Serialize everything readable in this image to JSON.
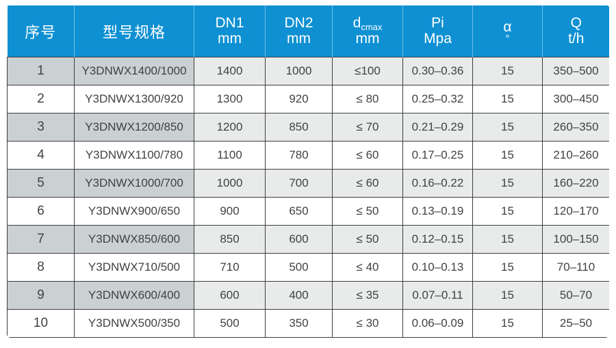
{
  "colors": {
    "header_bg": "#0e90d2",
    "header_text": "#ffffff",
    "row_shaded_lead": "#cbd0d2",
    "row_shaded": "#e9eaea",
    "row_even": "#ffffff",
    "border": "#3b3d3f",
    "body_text": "#3f4244"
  },
  "table": {
    "columns": {
      "col1": {
        "label": "序号"
      },
      "col2": {
        "label": "型号规格"
      },
      "col3": {
        "line1": "DN1",
        "line2": "mm"
      },
      "col4": {
        "line1": "DN2",
        "line2": "mm"
      },
      "col5": {
        "main": "d",
        "sub": "cmax",
        "line2": "mm"
      },
      "col6": {
        "line1": "Pi",
        "line2": "Mpa"
      },
      "col7": {
        "line1": "α",
        "line2": "°"
      },
      "col8": {
        "line1": "Q",
        "line2": "t/h"
      }
    },
    "rows": [
      {
        "index": "1",
        "model": "Y3DNWX1400/1000",
        "dn1": "1400",
        "dn2": "1000",
        "dcmax": "≤100",
        "pi": "0.30–0.36",
        "alpha": "15",
        "q": "350–500"
      },
      {
        "index": "2",
        "model": "Y3DNWX1300/920",
        "dn1": "1300",
        "dn2": "920",
        "dcmax": "≤ 80",
        "pi": "0.25–0.32",
        "alpha": "15",
        "q": "300–450"
      },
      {
        "index": "3",
        "model": "Y3DNWX1200/850",
        "dn1": "1200",
        "dn2": "850",
        "dcmax": "≤ 70",
        "pi": "0.21–0.29",
        "alpha": "15",
        "q": "260–350"
      },
      {
        "index": "4",
        "model": "Y3DNWX1100/780",
        "dn1": "1100",
        "dn2": "780",
        "dcmax": "≤ 60",
        "pi": "0.17–0.25",
        "alpha": "15",
        "q": "210–260"
      },
      {
        "index": "5",
        "model": "Y3DNWX1000/700",
        "dn1": "1000",
        "dn2": "700",
        "dcmax": "≤ 60",
        "pi": "0.16–0.22",
        "alpha": "15",
        "q": "160–220"
      },
      {
        "index": "6",
        "model": "Y3DNWX900/650",
        "dn1": "900",
        "dn2": "650",
        "dcmax": "≤ 50",
        "pi": "0.13–0.19",
        "alpha": "15",
        "q": "120–170"
      },
      {
        "index": "7",
        "model": "Y3DNWX850/600",
        "dn1": "850",
        "dn2": "600",
        "dcmax": "≤ 50",
        "pi": "0.12–0.15",
        "alpha": "15",
        "q": "100–150"
      },
      {
        "index": "8",
        "model": "Y3DNWX710/500",
        "dn1": "710",
        "dn2": "500",
        "dcmax": "≤ 40",
        "pi": "0.10–0.13",
        "alpha": "15",
        "q": "70–110"
      },
      {
        "index": "9",
        "model": "Y3DNWX600/400",
        "dn1": "600",
        "dn2": "400",
        "dcmax": "≤ 35",
        "pi": "0.07–0.11",
        "alpha": "15",
        "q": "50–70"
      },
      {
        "index": "10",
        "model": "Y3DNWX500/350",
        "dn1": "500",
        "dn2": "350",
        "dcmax": "≤ 30",
        "pi": "0.06–0.09",
        "alpha": "15",
        "q": "25–50"
      }
    ]
  },
  "chart_data": {
    "type": "table",
    "title": "",
    "columns": [
      "序号",
      "型号规格",
      "DN1 mm",
      "DN2 mm",
      "dcmax mm",
      "Pi Mpa",
      "α °",
      "Q t/h"
    ],
    "rows": [
      [
        "1",
        "Y3DNWX1400/1000",
        "1400",
        "1000",
        "≤100",
        "0.30–0.36",
        "15",
        "350–500"
      ],
      [
        "2",
        "Y3DNWX1300/920",
        "1300",
        "920",
        "≤ 80",
        "0.25–0.32",
        "15",
        "300–450"
      ],
      [
        "3",
        "Y3DNWX1200/850",
        "1200",
        "850",
        "≤ 70",
        "0.21–0.29",
        "15",
        "260–350"
      ],
      [
        "4",
        "Y3DNWX1100/780",
        "1100",
        "780",
        "≤ 60",
        "0.17–0.25",
        "15",
        "210–260"
      ],
      [
        "5",
        "Y3DNWX1000/700",
        "1000",
        "700",
        "≤ 60",
        "0.16–0.22",
        "15",
        "160–220"
      ],
      [
        "6",
        "Y3DNWX900/650",
        "900",
        "650",
        "≤ 50",
        "0.13–0.19",
        "15",
        "120–170"
      ],
      [
        "7",
        "Y3DNWX850/600",
        "850",
        "600",
        "≤ 50",
        "0.12–0.15",
        "15",
        "100–150"
      ],
      [
        "8",
        "Y3DNWX710/500",
        "710",
        "500",
        "≤ 40",
        "0.10–0.13",
        "15",
        "70–110"
      ],
      [
        "9",
        "Y3DNWX600/400",
        "600",
        "400",
        "≤ 35",
        "0.07–0.11",
        "15",
        "50–70"
      ],
      [
        "10",
        "Y3DNWX500/350",
        "500",
        "350",
        "≤ 30",
        "0.06–0.09",
        "15",
        "25–50"
      ]
    ],
    "layout_hints": {
      "header_style": "blue band, white text",
      "striping": "odd rows shaded; first two columns of shaded rows darker gray",
      "grid": "dark 1.5px cell borders in body, light separators in header"
    }
  }
}
